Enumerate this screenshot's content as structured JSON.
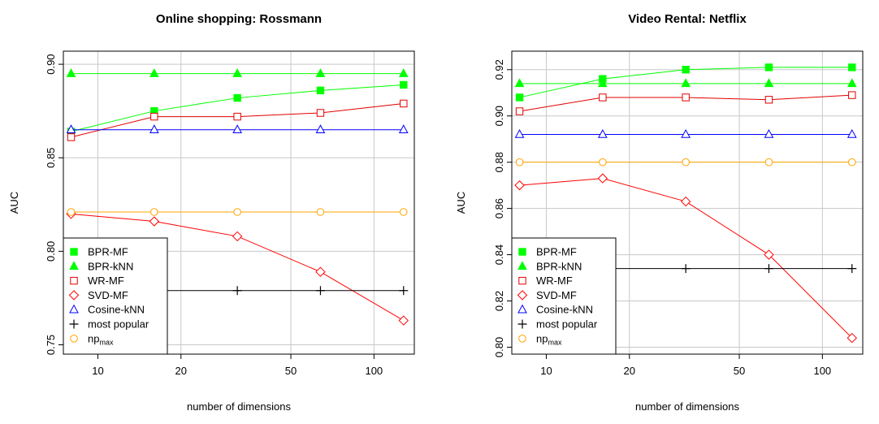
{
  "chart_data": [
    {
      "type": "line",
      "title": "Online shopping: Rossmann",
      "xlabel": "number of dimensions",
      "ylabel": "AUC",
      "x_scale": "log",
      "x_ticks": [
        10,
        20,
        50,
        100
      ],
      "y_ticks": [
        0.75,
        0.8,
        0.85,
        0.9
      ],
      "y_tick_labels": [
        "0.75",
        "0.80",
        "0.85",
        "0.90"
      ],
      "xlim": [
        7.5,
        140
      ],
      "ylim": [
        0.745,
        0.907
      ],
      "grid": true,
      "legend_position": "bottom-left",
      "x": [
        8,
        16,
        32,
        64,
        128
      ],
      "series": [
        {
          "name": "BPR-MF",
          "color": "#00ff00",
          "marker": "filled-square",
          "values": [
            0.864,
            0.875,
            0.882,
            0.886,
            0.889
          ]
        },
        {
          "name": "BPR-kNN",
          "color": "#00ff00",
          "marker": "filled-triangle",
          "values": [
            0.895,
            0.895,
            0.895,
            0.895,
            0.895
          ]
        },
        {
          "name": "WR-MF",
          "color": "#e00000",
          "marker": "open-square",
          "values": [
            0.861,
            0.872,
            0.872,
            0.874,
            0.879
          ]
        },
        {
          "name": "SVD-MF",
          "color": "#ff0000",
          "marker": "open-diamond",
          "values": [
            0.82,
            0.816,
            0.808,
            0.789,
            0.763
          ]
        },
        {
          "name": "Cosine-kNN",
          "color": "#0000ff",
          "marker": "open-triangle",
          "values": [
            0.865,
            0.865,
            0.865,
            0.865,
            0.865
          ]
        },
        {
          "name": "most popular",
          "color": "#000000",
          "marker": "plus",
          "values": [
            0.779,
            0.779,
            0.779,
            0.779,
            0.779
          ]
        },
        {
          "name": "np",
          "name_sub": "max",
          "color": "#ffa500",
          "marker": "open-circle",
          "values": [
            0.821,
            0.821,
            0.821,
            0.821,
            0.821
          ]
        }
      ]
    },
    {
      "type": "line",
      "title": "Video Rental: Netflix",
      "xlabel": "number of dimensions",
      "ylabel": "AUC",
      "x_scale": "log",
      "x_ticks": [
        10,
        20,
        50,
        100
      ],
      "y_ticks": [
        0.8,
        0.82,
        0.84,
        0.86,
        0.88,
        0.9,
        0.92
      ],
      "y_tick_labels": [
        "0.80",
        "0.82",
        "0.84",
        "0.86",
        "0.88",
        "0.90",
        "0.92"
      ],
      "xlim": [
        7.5,
        140
      ],
      "ylim": [
        0.797,
        0.928
      ],
      "grid": true,
      "legend_position": "bottom-left",
      "x": [
        8,
        16,
        32,
        64,
        128
      ],
      "series": [
        {
          "name": "BPR-MF",
          "color": "#00ff00",
          "marker": "filled-square",
          "values": [
            0.908,
            0.916,
            0.92,
            0.921,
            0.921
          ]
        },
        {
          "name": "BPR-kNN",
          "color": "#00ff00",
          "marker": "filled-triangle",
          "values": [
            0.914,
            0.914,
            0.914,
            0.914,
            0.914
          ]
        },
        {
          "name": "WR-MF",
          "color": "#e00000",
          "marker": "open-square",
          "values": [
            0.902,
            0.908,
            0.908,
            0.907,
            0.909
          ]
        },
        {
          "name": "SVD-MF",
          "color": "#ff0000",
          "marker": "open-diamond",
          "values": [
            0.87,
            0.873,
            0.863,
            0.84,
            0.804
          ]
        },
        {
          "name": "Cosine-kNN",
          "color": "#0000ff",
          "marker": "open-triangle",
          "values": [
            0.892,
            0.892,
            0.892,
            0.892,
            0.892
          ]
        },
        {
          "name": "most popular",
          "color": "#000000",
          "marker": "plus",
          "values": [
            0.834,
            0.834,
            0.834,
            0.834,
            0.834
          ]
        },
        {
          "name": "np",
          "name_sub": "max",
          "color": "#ffa500",
          "marker": "open-circle",
          "values": [
            0.88,
            0.88,
            0.88,
            0.88,
            0.88
          ]
        }
      ]
    }
  ]
}
